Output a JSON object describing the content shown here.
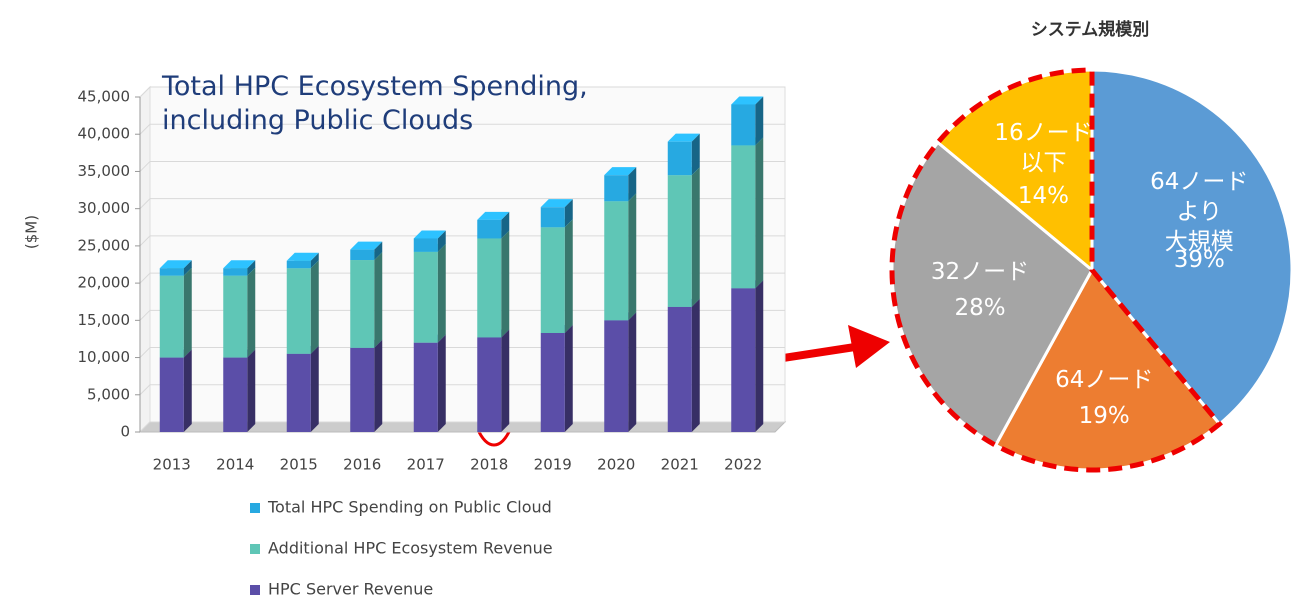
{
  "chart_data": [
    {
      "type": "bar",
      "title": "Total HPC Ecosystem Spending,\nincluding Public Clouds",
      "y_label": "($M)",
      "categories": [
        "2013",
        "2014",
        "2015",
        "2016",
        "2017",
        "2018",
        "2019",
        "2020",
        "2021",
        "2022"
      ],
      "series": [
        {
          "name": "HPC Server Revenue",
          "color": "#5b4ea8",
          "values": [
            10000,
            10000,
            10500,
            11300,
            12000,
            12700,
            13300,
            15000,
            16800,
            19300
          ]
        },
        {
          "name": "Additional HPC Ecosystem Revenue",
          "color": "#5fc6b6",
          "values": [
            11000,
            11000,
            11500,
            11800,
            12200,
            13300,
            14200,
            16000,
            17700,
            19200
          ]
        },
        {
          "name": "Total HPC Spending on Public Cloud",
          "color": "#27a9e1",
          "values": [
            1000,
            1000,
            1000,
            1400,
            1800,
            2500,
            2700,
            3500,
            4500,
            5500
          ]
        }
      ],
      "stacked": true,
      "ylim": [
        0,
        45000
      ],
      "yticks": [
        0,
        {
          "value": 5000,
          "label": "5,000"
        },
        {
          "value": 10000,
          "label": "10,000"
        },
        {
          "value": 15000,
          "label": "15,000"
        },
        {
          "value": 20000,
          "label": "20,000"
        },
        {
          "value": 25000,
          "label": "25,000"
        },
        {
          "value": 30000,
          "label": "30,000"
        },
        {
          "value": 35000,
          "label": "35,000"
        },
        {
          "value": 40000,
          "label": "40,000"
        },
        {
          "value": 45000,
          "label": "45,000"
        }
      ],
      "grid": true
    },
    {
      "type": "pie",
      "title": "システム規模別",
      "categories": [
        "64ノードより\n大規模",
        "64ノード",
        "32ノード",
        "16ノード\n以下"
      ],
      "values": [
        39,
        19,
        28,
        14
      ],
      "value_labels": [
        "39%",
        "19%",
        "28%",
        "14%"
      ],
      "colors": [
        "#5b9bd5",
        "#ed7d31",
        "#a5a5a5",
        "#ffc000"
      ]
    }
  ]
}
